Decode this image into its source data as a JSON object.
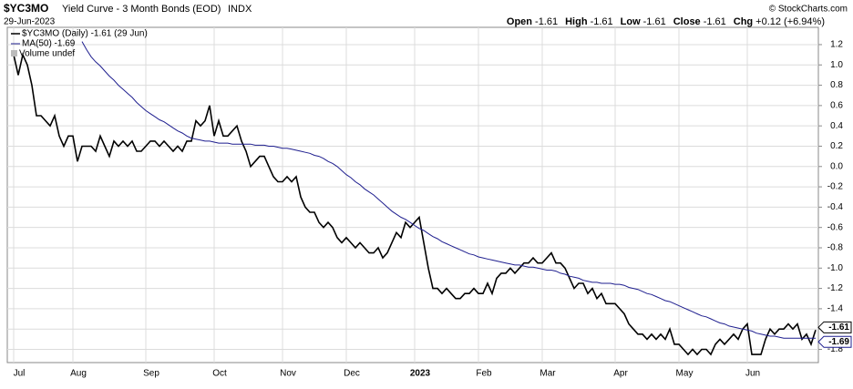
{
  "chart_data": {
    "type": "line",
    "symbol": "$YC3MO",
    "title": "Yield Curve - 3 Month Bonds (EOD)",
    "exchange": "INDX",
    "date": "29-Jun-2023",
    "stats": [
      {
        "label": "Open",
        "value": "-1.61"
      },
      {
        "label": "High",
        "value": "-1.61"
      },
      {
        "label": "Low",
        "value": "-1.61"
      },
      {
        "label": "Close",
        "value": "-1.61"
      },
      {
        "label": "Chg",
        "value": "+0.12 (+6.94%)"
      }
    ],
    "copyright": "© StockCharts.com",
    "volume_note": "Volume undef",
    "categories": [
      "Jul",
      null,
      null,
      null,
      null,
      null,
      null,
      null,
      null,
      null,
      null,
      null,
      null,
      "Aug",
      null,
      null,
      null,
      null,
      null,
      null,
      null,
      null,
      null,
      null,
      null,
      null,
      null,
      null,
      null,
      "Sep",
      null,
      null,
      null,
      null,
      null,
      null,
      null,
      null,
      null,
      null,
      null,
      null,
      null,
      null,
      "Oct",
      null,
      null,
      null,
      null,
      null,
      null,
      null,
      null,
      null,
      null,
      null,
      null,
      null,
      null,
      "Nov",
      null,
      null,
      null,
      null,
      null,
      null,
      null,
      null,
      null,
      null,
      null,
      null,
      null,
      "Dec",
      null,
      null,
      null,
      null,
      null,
      null,
      null,
      null,
      null,
      null,
      null,
      null,
      null,
      null,
      "2023",
      null,
      null,
      null,
      null,
      null,
      null,
      null,
      null,
      null,
      null,
      null,
      null,
      null,
      "Feb",
      null,
      null,
      null,
      null,
      null,
      null,
      null,
      null,
      null,
      null,
      null,
      null,
      null,
      "Mar",
      null,
      null,
      null,
      null,
      null,
      null,
      null,
      null,
      null,
      null,
      null,
      null,
      null,
      null,
      null,
      "Apr",
      null,
      null,
      null,
      null,
      null,
      null,
      null,
      null,
      null,
      null,
      null,
      null,
      null,
      "May",
      null,
      null,
      null,
      null,
      null,
      null,
      null,
      null,
      null,
      null,
      null,
      null,
      null,
      null,
      "Jun",
      null,
      null,
      null,
      null,
      null,
      null,
      null,
      null,
      null,
      null,
      null,
      null,
      null,
      null,
      null
    ],
    "series": [
      {
        "name": "$YC3MO (Daily) -1.61 (29 Jun)",
        "color": "#000000",
        "values": [
          1.1,
          0.9,
          1.1,
          1.0,
          0.8,
          0.5,
          0.5,
          0.45,
          0.4,
          0.5,
          0.3,
          0.2,
          0.3,
          0.3,
          0.05,
          0.2,
          0.2,
          0.2,
          0.15,
          0.3,
          0.2,
          0.1,
          0.25,
          0.2,
          0.25,
          0.2,
          0.25,
          0.15,
          0.15,
          0.2,
          0.25,
          0.25,
          0.2,
          0.25,
          0.2,
          0.15,
          0.2,
          0.15,
          0.25,
          0.25,
          0.45,
          0.4,
          0.45,
          0.6,
          0.3,
          0.45,
          0.3,
          0.3,
          0.35,
          0.4,
          0.25,
          0.15,
          0.0,
          0.05,
          0.1,
          0.1,
          0.0,
          -0.1,
          -0.15,
          -0.15,
          -0.1,
          -0.15,
          -0.1,
          -0.3,
          -0.4,
          -0.45,
          -0.45,
          -0.55,
          -0.6,
          -0.55,
          -0.6,
          -0.7,
          -0.75,
          -0.7,
          -0.75,
          -0.8,
          -0.75,
          -0.8,
          -0.85,
          -0.85,
          -0.8,
          -0.9,
          -0.85,
          -0.75,
          -0.65,
          -0.7,
          -0.55,
          -0.6,
          -0.55,
          -0.5,
          -0.75,
          -1.0,
          -1.2,
          -1.2,
          -1.25,
          -1.2,
          -1.25,
          -1.3,
          -1.3,
          -1.25,
          -1.25,
          -1.2,
          -1.25,
          -1.25,
          -1.15,
          -1.25,
          -1.1,
          -1.05,
          -1.05,
          -1.0,
          -1.05,
          -1.0,
          -0.95,
          -0.95,
          -0.9,
          -0.95,
          -0.95,
          -0.9,
          -0.85,
          -0.95,
          -0.95,
          -1.0,
          -1.1,
          -1.2,
          -1.15,
          -1.15,
          -1.25,
          -1.2,
          -1.3,
          -1.25,
          -1.35,
          -1.35,
          -1.35,
          -1.4,
          -1.45,
          -1.55,
          -1.6,
          -1.65,
          -1.65,
          -1.7,
          -1.65,
          -1.7,
          -1.65,
          -1.7,
          -1.6,
          -1.75,
          -1.75,
          -1.8,
          -1.85,
          -1.8,
          -1.85,
          -1.8,
          -1.8,
          -1.85,
          -1.75,
          -1.7,
          -1.75,
          -1.7,
          -1.65,
          -1.7,
          -1.6,
          -1.55,
          -1.85,
          -1.85,
          -1.85,
          -1.7,
          -1.6,
          -1.65,
          -1.6,
          -1.6,
          -1.55,
          -1.6,
          -1.55,
          -1.7,
          -1.65,
          -1.75,
          -1.61
        ]
      },
      {
        "name": "MA(50) -1.69",
        "color": "#1f1f8f",
        "values": [
          null,
          null,
          null,
          null,
          null,
          null,
          null,
          null,
          null,
          null,
          null,
          null,
          null,
          null,
          null,
          1.23,
          1.15,
          1.08,
          1.03,
          0.99,
          0.94,
          0.89,
          0.85,
          0.8,
          0.76,
          0.72,
          0.68,
          0.63,
          0.59,
          0.55,
          0.52,
          0.49,
          0.46,
          0.44,
          0.41,
          0.38,
          0.35,
          0.33,
          0.3,
          0.28,
          0.27,
          0.26,
          0.25,
          0.25,
          0.24,
          0.23,
          0.23,
          0.23,
          0.22,
          0.22,
          0.22,
          0.22,
          0.22,
          0.21,
          0.21,
          0.21,
          0.2,
          0.2,
          0.19,
          0.18,
          0.18,
          0.17,
          0.16,
          0.15,
          0.14,
          0.13,
          0.11,
          0.1,
          0.08,
          0.05,
          0.03,
          0.0,
          -0.04,
          -0.08,
          -0.11,
          -0.15,
          -0.18,
          -0.22,
          -0.25,
          -0.28,
          -0.32,
          -0.36,
          -0.4,
          -0.44,
          -0.47,
          -0.5,
          -0.52,
          -0.55,
          -0.58,
          -0.61,
          -0.63,
          -0.66,
          -0.69,
          -0.71,
          -0.74,
          -0.76,
          -0.78,
          -0.8,
          -0.82,
          -0.84,
          -0.86,
          -0.87,
          -0.89,
          -0.9,
          -0.91,
          -0.92,
          -0.93,
          -0.94,
          -0.95,
          -0.96,
          -0.97,
          -0.97,
          -0.98,
          -0.99,
          -0.99,
          -1.0,
          -1.01,
          -1.02,
          -1.02,
          -1.03,
          -1.05,
          -1.06,
          -1.08,
          -1.09,
          -1.1,
          -1.12,
          -1.13,
          -1.14,
          -1.14,
          -1.15,
          -1.15,
          -1.15,
          -1.16,
          -1.16,
          -1.17,
          -1.19,
          -1.2,
          -1.21,
          -1.23,
          -1.25,
          -1.26,
          -1.28,
          -1.3,
          -1.32,
          -1.33,
          -1.35,
          -1.37,
          -1.39,
          -1.41,
          -1.43,
          -1.45,
          -1.47,
          -1.48,
          -1.5,
          -1.52,
          -1.54,
          -1.55,
          -1.57,
          -1.58,
          -1.59,
          -1.6,
          -1.61,
          -1.62,
          -1.64,
          -1.65,
          -1.66,
          -1.67,
          -1.67,
          -1.68,
          -1.69,
          -1.69,
          -1.69,
          -1.69,
          -1.69,
          -1.69,
          -1.69,
          -1.69
        ]
      }
    ],
    "ylim": [
      -1.93,
      1.37
    ],
    "yticks": [
      1.2,
      {
        "value": 1,
        "label": "1.0"
      },
      0.8,
      0.6,
      0.4,
      0.2,
      {
        "value": 0,
        "label": "0.0"
      },
      -0.2,
      -0.4,
      -0.6,
      -0.8,
      {
        "value": -1,
        "label": "-1.0"
      },
      -1.2,
      -1.4,
      -1.6,
      -1.8
    ],
    "grid": true
  }
}
